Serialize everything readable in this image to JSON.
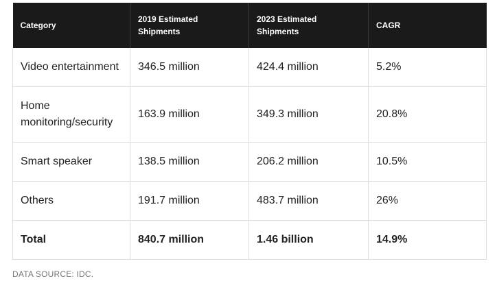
{
  "table": {
    "headers": [
      "Category",
      "2019 Estimated Shipments",
      "2023 Estimated Shipments",
      "CAGR"
    ],
    "rows": [
      [
        "Video entertainment",
        "346.5 million",
        "424.4 million",
        "5.2%"
      ],
      [
        "Home monitoring/security",
        "163.9 million",
        "349.3 million",
        "20.8%"
      ],
      [
        "Smart speaker",
        "138.5 million",
        "206.2 million",
        "10.5%"
      ],
      [
        "Others",
        "191.7 million",
        "483.7 million",
        "26%"
      ]
    ],
    "total": [
      "Total",
      "840.7 million",
      "1.46 billion",
      "14.9%"
    ]
  },
  "source": "DATA SOURCE: IDC."
}
